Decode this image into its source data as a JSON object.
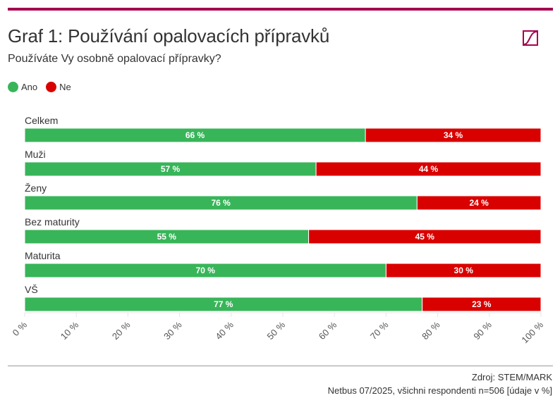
{
  "header": {
    "title": "Graf 1: Používání opalovacích přípravků",
    "subtitle": "Používáte Vy osobně opalovací přípravky?",
    "brand_color": "#a50050"
  },
  "legend": [
    {
      "label": "Ano",
      "color": "#38b559"
    },
    {
      "label": "Ne",
      "color": "#d90000"
    }
  ],
  "footer": {
    "source": "Zdroj: STEM/MARK",
    "note": "Netbus 07/2025, všichni respondenti n=506 [údaje v %]"
  },
  "chart_data": {
    "type": "bar",
    "orientation": "horizontal",
    "stacked": true,
    "normalized": true,
    "title": "Graf 1: Používání opalovacích přípravků",
    "subtitle": "Používáte Vy osobně opalovací přípravky?",
    "categories": [
      "Celkem",
      "Muži",
      "Ženy",
      "Bez maturity",
      "Maturita",
      "VŠ"
    ],
    "series": [
      {
        "name": "Ano",
        "color": "#38b559",
        "values": [
          66,
          57,
          76,
          55,
          70,
          77
        ]
      },
      {
        "name": "Ne",
        "color": "#d90000",
        "values": [
          34,
          44,
          24,
          45,
          30,
          23
        ]
      }
    ],
    "data_label_suffix": " %",
    "xlim": [
      0,
      100
    ],
    "xticks": [
      0,
      10,
      20,
      30,
      40,
      50,
      60,
      70,
      80,
      90,
      100
    ],
    "xtick_labels": [
      "0 %",
      "10 %",
      "20 %",
      "30 %",
      "40 %",
      "50 %",
      "60 %",
      "70 %",
      "80 %",
      "90 %",
      "100 %"
    ],
    "xlabel": "",
    "ylabel": "",
    "grid": false,
    "legend_position": "top-left"
  }
}
